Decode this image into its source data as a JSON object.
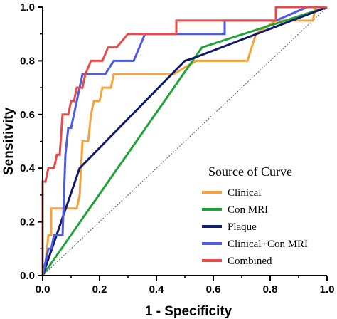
{
  "chart_data": {
    "type": "line",
    "title": "",
    "xlabel": "1 - Specificity",
    "ylabel": "Sensitivity",
    "xlim": [
      0,
      1
    ],
    "ylim": [
      0,
      1
    ],
    "x_ticks": [
      "0.0",
      "0.2",
      "0.4",
      "0.6",
      "0.8",
      "1.0"
    ],
    "y_ticks": [
      "0.0",
      "0.2",
      "0.4",
      "0.6",
      "0.8",
      "1.0"
    ],
    "grid": false,
    "legend": {
      "title": "Source of Curve",
      "position": "bottom-right"
    },
    "reference_line": {
      "style": "dotted",
      "color": "#555555",
      "x": [
        0,
        1
      ],
      "y": [
        0,
        1
      ]
    },
    "series": [
      {
        "name": "Clinical",
        "color": "#F5A33A",
        "points": [
          [
            0,
            0
          ],
          [
            0.01,
            0.05
          ],
          [
            0.02,
            0.15
          ],
          [
            0.03,
            0.15
          ],
          [
            0.03,
            0.25
          ],
          [
            0.05,
            0.25
          ],
          [
            0.12,
            0.25
          ],
          [
            0.13,
            0.3
          ],
          [
            0.14,
            0.5
          ],
          [
            0.16,
            0.5
          ],
          [
            0.17,
            0.6
          ],
          [
            0.18,
            0.65
          ],
          [
            0.2,
            0.65
          ],
          [
            0.21,
            0.7
          ],
          [
            0.24,
            0.7
          ],
          [
            0.25,
            0.75
          ],
          [
            0.46,
            0.75
          ],
          [
            0.54,
            0.8
          ],
          [
            0.72,
            0.8
          ],
          [
            0.75,
            0.9
          ],
          [
            0.82,
            0.95
          ],
          [
            0.95,
            0.95
          ],
          [
            0.96,
            1.0
          ],
          [
            1.0,
            1.0
          ]
        ]
      },
      {
        "name": "Con MRI",
        "color": "#22A33A",
        "points": [
          [
            0,
            0
          ],
          [
            0.56,
            0.85
          ],
          [
            1.0,
            1.0
          ]
        ]
      },
      {
        "name": "Plaque",
        "color": "#101A6B",
        "points": [
          [
            0,
            0
          ],
          [
            0.13,
            0.4
          ],
          [
            0.5,
            0.8
          ],
          [
            0.53,
            0.81
          ],
          [
            1.0,
            1.0
          ]
        ]
      },
      {
        "name": "Clinical+Con MRI",
        "color": "#4F5BE0",
        "points": [
          [
            0,
            0
          ],
          [
            0.01,
            0.05
          ],
          [
            0.02,
            0.1
          ],
          [
            0.03,
            0.1
          ],
          [
            0.04,
            0.15
          ],
          [
            0.07,
            0.15
          ],
          [
            0.08,
            0.45
          ],
          [
            0.09,
            0.55
          ],
          [
            0.1,
            0.55
          ],
          [
            0.11,
            0.6
          ],
          [
            0.12,
            0.65
          ],
          [
            0.14,
            0.75
          ],
          [
            0.22,
            0.75
          ],
          [
            0.25,
            0.8
          ],
          [
            0.32,
            0.8
          ],
          [
            0.36,
            0.9
          ],
          [
            0.39,
            0.9
          ],
          [
            0.64,
            0.9
          ],
          [
            0.64,
            0.95
          ],
          [
            0.82,
            0.95
          ],
          [
            0.93,
            1.0
          ],
          [
            1.0,
            1.0
          ]
        ]
      },
      {
        "name": "Combined",
        "color": "#E84A4A",
        "points": [
          [
            0,
            0
          ],
          [
            0,
            0.35
          ],
          [
            0.01,
            0.35
          ],
          [
            0.02,
            0.4
          ],
          [
            0.04,
            0.4
          ],
          [
            0.05,
            0.45
          ],
          [
            0.06,
            0.45
          ],
          [
            0.07,
            0.6
          ],
          [
            0.09,
            0.6
          ],
          [
            0.1,
            0.65
          ],
          [
            0.11,
            0.65
          ],
          [
            0.12,
            0.7
          ],
          [
            0.14,
            0.7
          ],
          [
            0.15,
            0.75
          ],
          [
            0.17,
            0.8
          ],
          [
            0.21,
            0.8
          ],
          [
            0.23,
            0.85
          ],
          [
            0.26,
            0.85
          ],
          [
            0.3,
            0.9
          ],
          [
            0.47,
            0.9
          ],
          [
            0.47,
            0.95
          ],
          [
            0.82,
            0.95
          ],
          [
            0.82,
            1.0
          ],
          [
            1.0,
            1.0
          ]
        ]
      }
    ]
  }
}
